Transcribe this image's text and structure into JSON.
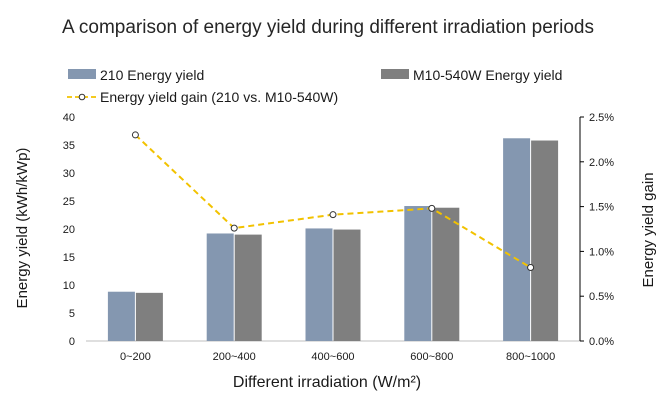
{
  "chart_data": {
    "type": "bar",
    "title": "A comparison of energy yield during different irradiation periods",
    "xlabel": "Different irradiation  (W/m²)",
    "ylabel": "Energy yield  (kWh/kWp)",
    "y2label": "Energy yield gain",
    "categories": [
      "0~200",
      "200~400",
      "400~600",
      "600~800",
      "800~1000"
    ],
    "ylim": [
      0,
      40
    ],
    "yticks": [
      "0",
      "5",
      "10",
      "15",
      "20",
      "25",
      "30",
      "35",
      "40"
    ],
    "y2lim": [
      0,
      2.5
    ],
    "y2ticks": [
      "0.0%",
      "0.5%",
      "1.0%",
      "1.5%",
      "2.0%",
      "2.5%"
    ],
    "grid": false,
    "legend_position": "top",
    "series": [
      {
        "name": "210 Energy yield",
        "type": "bar",
        "axis": "left",
        "color": "#8497b0",
        "values": [
          8.8,
          19.2,
          20.1,
          24.1,
          36.2
        ]
      },
      {
        "name": "M10-540W Energy yield",
        "type": "bar",
        "axis": "left",
        "color": "#7f7f7f",
        "values": [
          8.6,
          19.0,
          19.9,
          23.8,
          35.8
        ]
      },
      {
        "name": "Energy yield gain (210 vs. M10-540W)",
        "type": "line",
        "axis": "right",
        "color": "#f2c200",
        "values": [
          2.3,
          1.26,
          1.41,
          1.48,
          0.82
        ]
      }
    ]
  }
}
